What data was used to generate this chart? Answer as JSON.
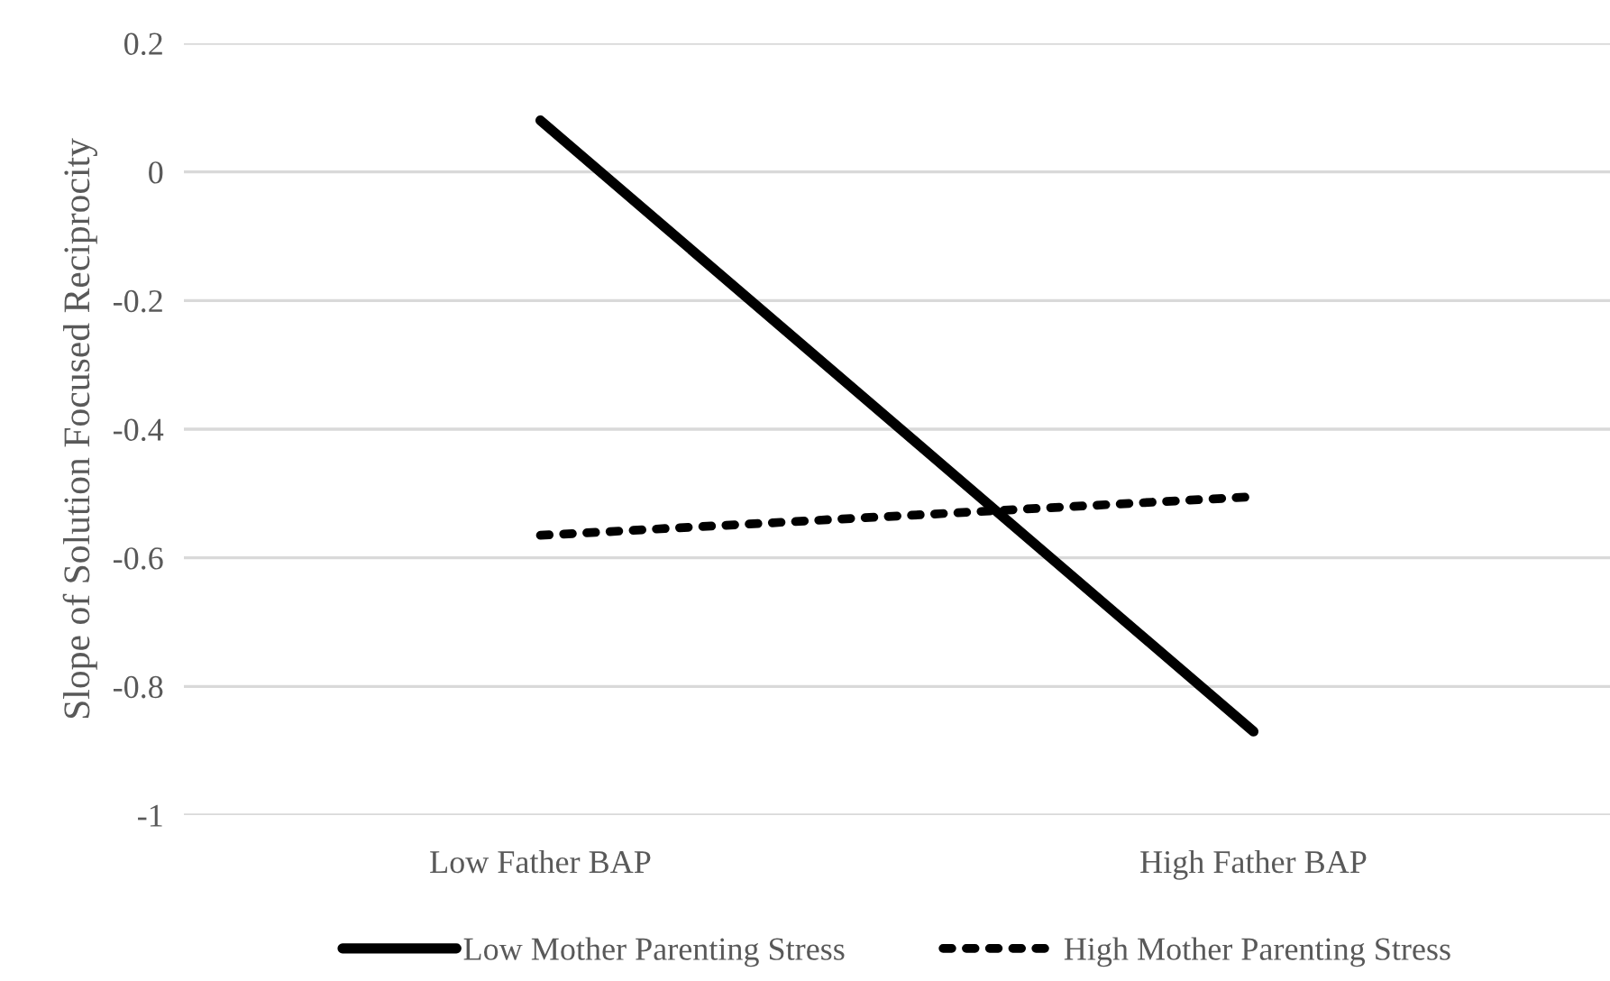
{
  "chart_data": {
    "type": "line",
    "ylabel": "Slope of Solution Focused Reciprocity",
    "categories": [
      "Low Father BAP",
      "High Father BAP"
    ],
    "series": [
      {
        "name": "Low Mother Parenting Stress",
        "color": "#000000",
        "values": [
          0.08,
          -0.87
        ],
        "line_style": "solid"
      },
      {
        "name": "High Mother Parenting Stress",
        "color": "#000000",
        "values": [
          -0.565,
          -0.505
        ],
        "line_style": "dotted"
      }
    ],
    "ylim": [
      -1,
      0.2
    ],
    "yticks": [
      {
        "value": -1,
        "label": "-1"
      },
      {
        "value": -0.8,
        "label": "-0.8"
      },
      {
        "value": -0.6,
        "label": "-0.6"
      },
      {
        "value": -0.4,
        "label": "-0.4"
      },
      {
        "value": -0.2,
        "label": "-0.2"
      },
      0,
      0.2
    ],
    "grid": "y",
    "legend": "bottom",
    "marker": "none"
  }
}
